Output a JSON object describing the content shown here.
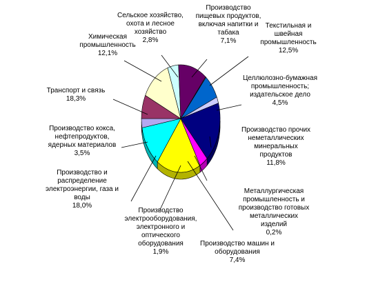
{
  "chart_data": {
    "type": "pie",
    "pie_style": "3d",
    "slices": [
      {
        "label": "Сельское хозяйство,\nохота и лесное\nхозяйство",
        "value_text": "2,8%",
        "value": 2.8,
        "color": "#b4a7f0"
      },
      {
        "label": "Производство\nпищевых продуктов,\nвключая напитки и\nтабака",
        "value_text": "7,1%",
        "value": 7.1,
        "color": "#993366"
      },
      {
        "label": "Текстильная и\nшвейная\nпромышленность",
        "value_text": "12,5%",
        "value": 12.5,
        "color": "#ffffcc"
      },
      {
        "label": "Целлюлозно-бумажная\nпромышленность;\nиздательское дело",
        "value_text": "4,5%",
        "value": 4.5,
        "color": "#ccffff"
      },
      {
        "label": "Производство прочих\nнеметаллических\nминеральных\nпродуктов",
        "value_text": "11,8%",
        "value": 11.8,
        "color": "#660066"
      },
      {
        "label": "Металлургическая\nпромышленность и\nпроизводство готовых\nметаллических\nизделий",
        "value_text": "0,2%",
        "value": 0.2,
        "color": "#ff8080"
      },
      {
        "label": "Производство машин и\nоборудования",
        "value_text": "7,4%",
        "value": 7.4,
        "color": "#0066cc"
      },
      {
        "label": "Производство\nэлектрооборудования,\nэлектронного и\nоптического\nоборудования",
        "value_text": "1,9%",
        "value": 1.9,
        "color": "#ccccff"
      },
      {
        "label": "Производство и\nраспределение\nэлектроэнергии, газа и\nводы",
        "value_text": "18,0%",
        "value": 18.0,
        "color": "#000080"
      },
      {
        "label": "Производство кокса,\nнефтепродуктов,\nядерных материалов",
        "value_text": "3,5%",
        "value": 3.5,
        "color": "#ff00ff"
      },
      {
        "label": "Транспорт и связь",
        "value_text": "18,3%",
        "value": 18.3,
        "color": "#ffff00"
      },
      {
        "label": "Химическая\nпромышленность",
        "value_text": "12,1%",
        "value": 12.1,
        "color": "#00ffff"
      }
    ]
  }
}
